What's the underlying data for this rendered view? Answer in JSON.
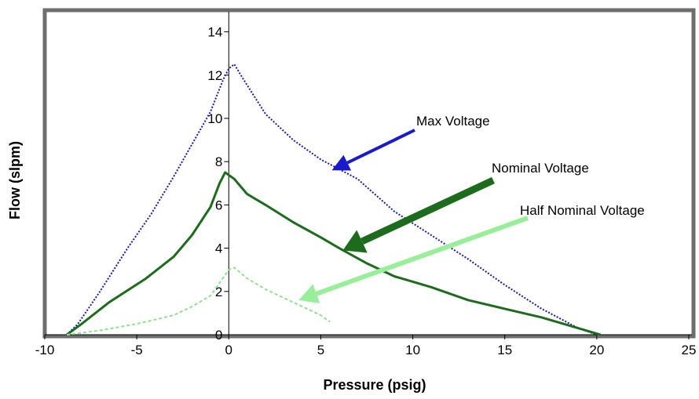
{
  "chart_data": {
    "type": "line",
    "xlabel": "Pressure (psig)",
    "ylabel": "Flow (slpm)",
    "xlim": [
      -10,
      25
    ],
    "ylim": [
      0,
      15
    ],
    "x_ticks": [
      -10,
      -5,
      0,
      5,
      10,
      15,
      20,
      25
    ],
    "y_ticks": [
      0,
      2,
      4,
      6,
      8,
      10,
      12,
      14
    ],
    "x_tick_labels": [
      "-10",
      "-5",
      "0",
      "5",
      "10",
      "15",
      "20",
      "25"
    ],
    "y_tick_labels": [
      "0",
      "2",
      "4",
      "6",
      "8",
      "10",
      "12",
      "14"
    ],
    "legend": "none (annotations with arrows)",
    "series": [
      {
        "name": "Max Voltage",
        "color": "#1a1aa8",
        "style": "dotted",
        "points": [
          [
            -8.8,
            0
          ],
          [
            -8.2,
            0.5
          ],
          [
            -7.0,
            2.0
          ],
          [
            -5.5,
            4.0
          ],
          [
            -4.2,
            5.6
          ],
          [
            -3.0,
            7.3
          ],
          [
            -2.0,
            8.8
          ],
          [
            -1.0,
            10.3
          ],
          [
            -0.3,
            11.8
          ],
          [
            0.0,
            12.3
          ],
          [
            0.3,
            12.5
          ],
          [
            0.8,
            11.8
          ],
          [
            2.0,
            10.2
          ],
          [
            3.5,
            9.0
          ],
          [
            5.0,
            8.1
          ],
          [
            7.0,
            7.2
          ],
          [
            9.0,
            5.7
          ],
          [
            11.0,
            4.6
          ],
          [
            13.0,
            3.5
          ],
          [
            15.0,
            2.3
          ],
          [
            17.0,
            1.2
          ],
          [
            19.0,
            0.3
          ],
          [
            20.0,
            0
          ]
        ]
      },
      {
        "name": "Nominal Voltage",
        "color": "#1d6b1d",
        "style": "solid",
        "points": [
          [
            -8.8,
            0
          ],
          [
            -8.0,
            0.5
          ],
          [
            -6.5,
            1.5
          ],
          [
            -4.5,
            2.6
          ],
          [
            -3.0,
            3.6
          ],
          [
            -2.0,
            4.6
          ],
          [
            -1.0,
            5.9
          ],
          [
            -0.5,
            7.0
          ],
          [
            -0.2,
            7.5
          ],
          [
            0.3,
            7.2
          ],
          [
            1.0,
            6.5
          ],
          [
            2.0,
            6.0
          ],
          [
            3.5,
            5.2
          ],
          [
            5.0,
            4.5
          ],
          [
            6.0,
            4.0
          ],
          [
            7.5,
            3.3
          ],
          [
            9.0,
            2.7
          ],
          [
            11.0,
            2.2
          ],
          [
            13.0,
            1.6
          ],
          [
            15.0,
            1.2
          ],
          [
            17.0,
            0.8
          ],
          [
            19.0,
            0.3
          ],
          [
            20.2,
            0
          ]
        ]
      },
      {
        "name": "Half Nominal Voltage",
        "color": "#8fe08f",
        "style": "dashed",
        "points": [
          [
            -8.8,
            0
          ],
          [
            -7.0,
            0.2
          ],
          [
            -5.0,
            0.5
          ],
          [
            -3.0,
            0.9
          ],
          [
            -2.0,
            1.3
          ],
          [
            -1.0,
            1.8
          ],
          [
            -0.5,
            2.4
          ],
          [
            0.0,
            3.0
          ],
          [
            0.3,
            3.1
          ],
          [
            1.0,
            2.6
          ],
          [
            2.0,
            2.1
          ],
          [
            3.0,
            1.7
          ],
          [
            4.0,
            1.3
          ],
          [
            5.0,
            0.9
          ],
          [
            5.5,
            0.6
          ]
        ]
      }
    ],
    "annotations": [
      {
        "text": "Max Voltage",
        "series": "Max Voltage",
        "arrow_to": [
          5.6,
          7.6
        ],
        "color": "#1a1acc"
      },
      {
        "text": "Nominal Voltage",
        "series": "Nominal Voltage",
        "arrow_to": [
          6.2,
          3.9
        ],
        "color": "#1d6b1d"
      },
      {
        "text": "Half Nominal Voltage",
        "series": "Half Nominal Voltage",
        "arrow_to": [
          3.8,
          1.6
        ],
        "color": "#99ee99"
      }
    ]
  }
}
